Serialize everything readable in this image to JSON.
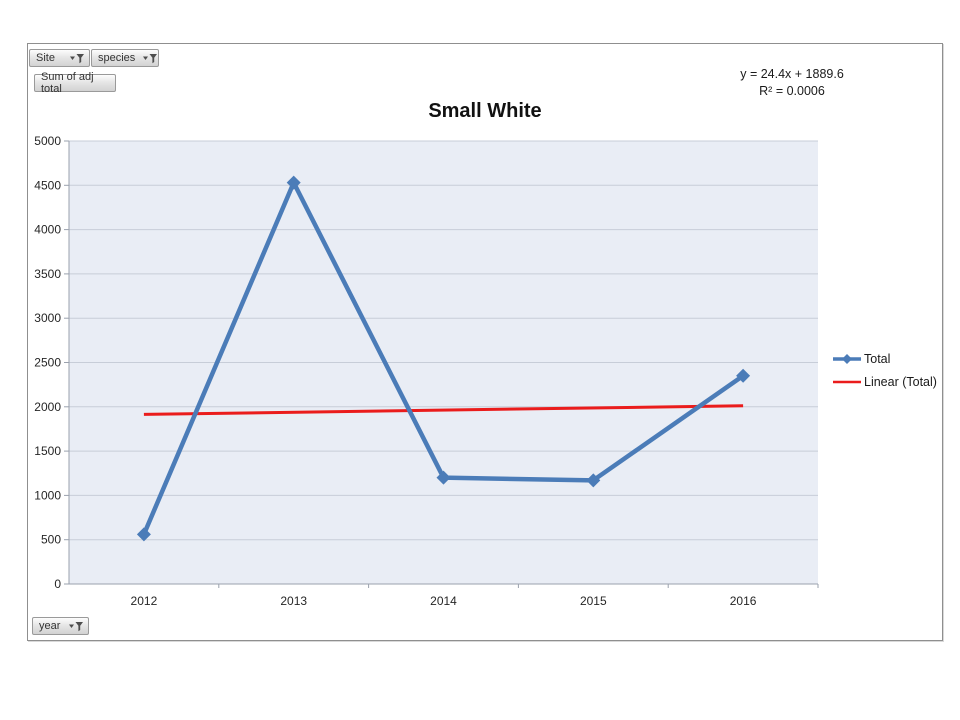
{
  "pivot_buttons": {
    "site_label": "Site",
    "species_label": "species",
    "value_label": "Sum of adj total",
    "axis_label": "year"
  },
  "chart_data": {
    "type": "line",
    "title": "Small White",
    "xlabel": "",
    "ylabel": "",
    "categories": [
      "2012",
      "2013",
      "2014",
      "2015",
      "2016"
    ],
    "series": [
      {
        "name": "Total",
        "values": [
          560,
          4530,
          1200,
          1170,
          2350
        ],
        "color": "#4b7cb8",
        "marker": "diamond"
      }
    ],
    "trendline": {
      "name": "Linear (Total)",
      "slope": 24.4,
      "intercept": 1889.6,
      "color": "#ea1c1c",
      "equation": "y = 24.4x + 1889.6",
      "r_squared": "R² = 0.0006"
    },
    "ylim": [
      0,
      5000
    ],
    "ytick_step": 500,
    "grid": true,
    "legend_position": "right",
    "plot_bg": "#e9edf5",
    "gridline_color": "#c7cdd8",
    "axis_color": "#9aa1ad"
  }
}
